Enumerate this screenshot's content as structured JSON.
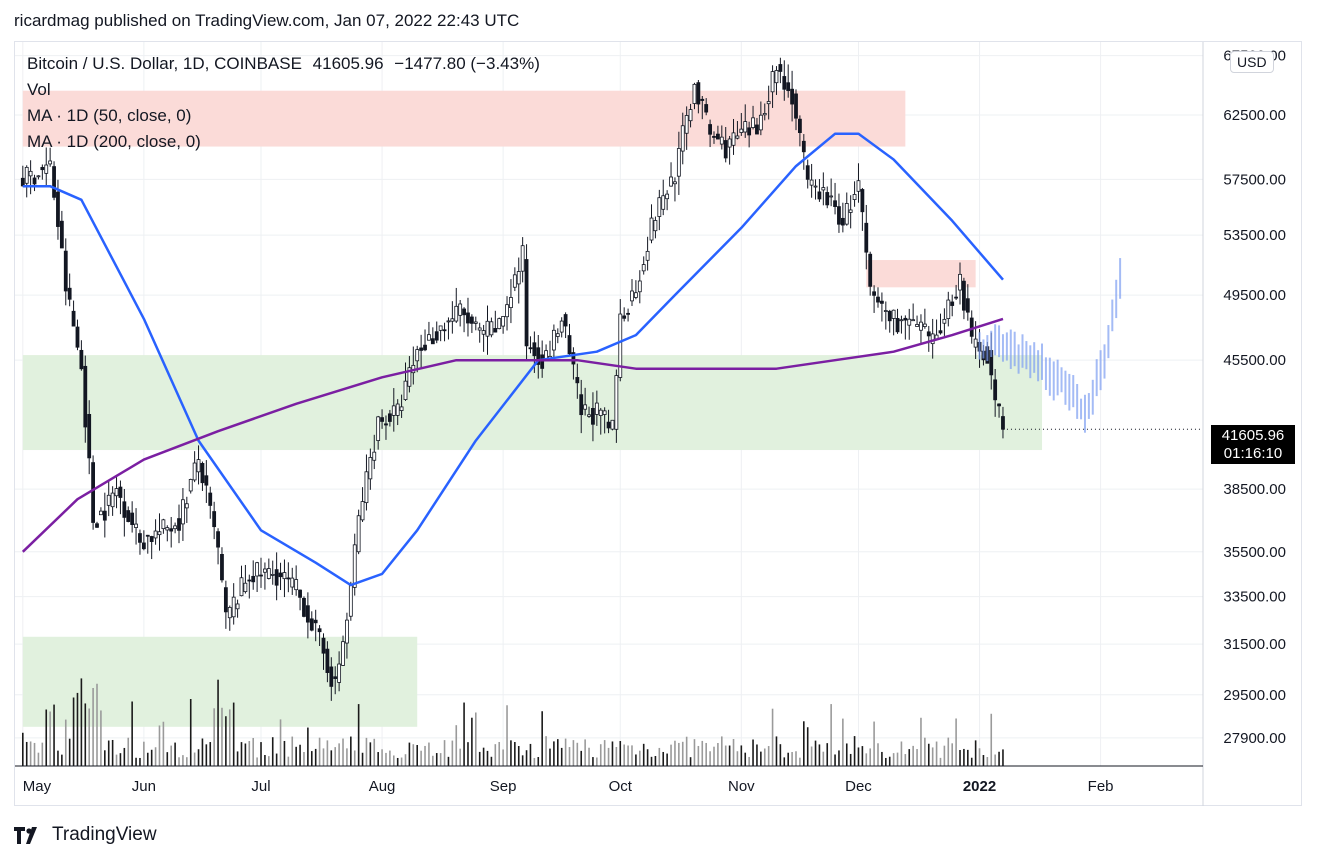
{
  "header": {
    "published": "ricardmag published on TradingView.com, Jan 07, 2022 22:43 UTC"
  },
  "legend": {
    "symbol": "Bitcoin / U.S. Dollar, 1D, COINBASE",
    "last": "41605.96",
    "change": "−1477.80 (−3.43%)",
    "vol": "Vol",
    "ma50": "MA · 1D (50, close, 0)",
    "ma200": "MA · 1D (200, close, 0)"
  },
  "currency_badge": "USD",
  "price_badge": {
    "price": "41605.96",
    "countdown": "01:16:10"
  },
  "footer": {
    "brand": "TradingView",
    "logo_icon": "tradingview-logo-icon"
  },
  "colors": {
    "ma50": "#2962ff",
    "ma200": "#7b1fa2",
    "resistance_zone": "#fbd9d6",
    "support_zone": "#dff0dc",
    "projection": "#7e9ff2"
  },
  "chart_data": {
    "type": "candlestick",
    "title": "Bitcoin / U.S. Dollar, 1D, COINBASE",
    "y_ticks": [
      67500,
      62500,
      57500,
      53500,
      49500,
      45500,
      38500,
      35500,
      33500,
      31500,
      29500,
      27900
    ],
    "y_tick_labels": [
      "67500.00",
      "62500.00",
      "57500.00",
      "53500.00",
      "49500.00",
      "45500.00",
      "38500.00",
      "35500.00",
      "33500.00",
      "31500.00",
      "29500.00",
      "27900.00"
    ],
    "ylim": [
      26900,
      68700
    ],
    "scale": "log",
    "x_labels": [
      {
        "label": "May",
        "date": "2021-05-01"
      },
      {
        "label": "Jun",
        "date": "2021-06-01"
      },
      {
        "label": "Jul",
        "date": "2021-07-01"
      },
      {
        "label": "Aug",
        "date": "2021-08-01"
      },
      {
        "label": "Sep",
        "date": "2021-09-01"
      },
      {
        "label": "Oct",
        "date": "2021-10-01"
      },
      {
        "label": "Nov",
        "date": "2021-11-01"
      },
      {
        "label": "Dec",
        "date": "2021-12-01"
      },
      {
        "label": "2022",
        "date": "2022-01-01",
        "bold": true
      },
      {
        "label": "Feb",
        "date": "2022-02-01"
      }
    ],
    "price_path": [
      [
        "2021-05-01",
        57500
      ],
      [
        "2021-05-08",
        58500
      ],
      [
        "2021-05-12",
        50000
      ],
      [
        "2021-05-16",
        45000
      ],
      [
        "2021-05-19",
        37000
      ],
      [
        "2021-05-22",
        37500
      ],
      [
        "2021-05-25",
        38500
      ],
      [
        "2021-05-31",
        36000
      ],
      [
        "2021-06-06",
        36500
      ],
      [
        "2021-06-10",
        37000
      ],
      [
        "2021-06-15",
        40000
      ],
      [
        "2021-06-20",
        35500
      ],
      [
        "2021-06-22",
        32500
      ],
      [
        "2021-06-28",
        34500
      ],
      [
        "2021-07-05",
        34500
      ],
      [
        "2021-07-10",
        33800
      ],
      [
        "2021-07-15",
        32000
      ],
      [
        "2021-07-20",
        29800
      ],
      [
        "2021-07-23",
        32500
      ],
      [
        "2021-07-26",
        37000
      ],
      [
        "2021-07-31",
        42000
      ],
      [
        "2021-08-05",
        42500
      ],
      [
        "2021-08-10",
        46000
      ],
      [
        "2021-08-14",
        47000
      ],
      [
        "2021-08-21",
        48500
      ],
      [
        "2021-08-26",
        47000
      ],
      [
        "2021-08-31",
        47500
      ],
      [
        "2021-09-06",
        52000
      ],
      [
        "2021-09-07",
        46500
      ],
      [
        "2021-09-12",
        45500
      ],
      [
        "2021-09-16",
        48000
      ],
      [
        "2021-09-21",
        42500
      ],
      [
        "2021-09-25",
        42500
      ],
      [
        "2021-09-29",
        41500
      ],
      [
        "2021-10-01",
        48000
      ],
      [
        "2021-10-05",
        50000
      ],
      [
        "2021-10-10",
        55000
      ],
      [
        "2021-10-15",
        58000
      ],
      [
        "2021-10-20",
        65000
      ],
      [
        "2021-10-24",
        61000
      ],
      [
        "2021-10-28",
        60000
      ],
      [
        "2021-11-01",
        61000
      ],
      [
        "2021-11-05",
        61500
      ],
      [
        "2021-11-10",
        66500
      ],
      [
        "2021-11-14",
        64000
      ],
      [
        "2021-11-18",
        57000
      ],
      [
        "2021-11-22",
        56500
      ],
      [
        "2021-11-27",
        54500
      ],
      [
        "2021-12-01",
        57000
      ],
      [
        "2021-12-04",
        49500
      ],
      [
        "2021-12-10",
        48000
      ],
      [
        "2021-12-16",
        47500
      ],
      [
        "2021-12-20",
        46500
      ],
      [
        "2021-12-27",
        50500
      ],
      [
        "2021-12-30",
        46500
      ],
      [
        "2022-01-03",
        46000
      ],
      [
        "2022-01-05",
        43000
      ],
      [
        "2022-01-07",
        41605.96
      ]
    ],
    "ma50": [
      [
        "2021-05-01",
        57000
      ],
      [
        "2021-05-08",
        57000
      ],
      [
        "2021-05-16",
        56000
      ],
      [
        "2021-06-01",
        48000
      ],
      [
        "2021-06-15",
        41000
      ],
      [
        "2021-07-01",
        36500
      ],
      [
        "2021-07-15",
        35000
      ],
      [
        "2021-07-24",
        34000
      ],
      [
        "2021-08-01",
        34500
      ],
      [
        "2021-08-10",
        36500
      ],
      [
        "2021-08-25",
        41000
      ],
      [
        "2021-09-10",
        45500
      ],
      [
        "2021-09-25",
        46000
      ],
      [
        "2021-10-05",
        47000
      ],
      [
        "2021-10-15",
        49500
      ],
      [
        "2021-11-01",
        54000
      ],
      [
        "2021-11-15",
        58500
      ],
      [
        "2021-11-25",
        61000
      ],
      [
        "2021-12-01",
        61000
      ],
      [
        "2021-12-10",
        59000
      ],
      [
        "2021-12-25",
        54500
      ],
      [
        "2022-01-07",
        50500
      ]
    ],
    "ma200": [
      [
        "2021-05-01",
        35500
      ],
      [
        "2021-05-15",
        38000
      ],
      [
        "2021-06-01",
        40000
      ],
      [
        "2021-06-20",
        41500
      ],
      [
        "2021-07-10",
        43000
      ],
      [
        "2021-08-01",
        44500
      ],
      [
        "2021-08-20",
        45500
      ],
      [
        "2021-09-20",
        45500
      ],
      [
        "2021-10-05",
        45000
      ],
      [
        "2021-10-25",
        45000
      ],
      [
        "2021-11-10",
        45000
      ],
      [
        "2021-11-25",
        45500
      ],
      [
        "2021-12-10",
        46000
      ],
      [
        "2021-12-25",
        47000
      ],
      [
        "2022-01-07",
        48000
      ]
    ],
    "projection": [
      [
        "2022-01-01",
        46000
      ],
      [
        "2022-01-05",
        46500
      ],
      [
        "2022-01-10",
        46000
      ],
      [
        "2022-01-15",
        45700
      ],
      [
        "2022-01-20",
        44500
      ],
      [
        "2022-01-25",
        43500
      ],
      [
        "2022-01-28",
        42500
      ],
      [
        "2022-02-02",
        45500
      ],
      [
        "2022-02-06",
        50500
      ]
    ],
    "zones": [
      {
        "kind": "resistance",
        "from": "2021-05-01",
        "to": "2021-12-13",
        "low": 60000,
        "high": 64500
      },
      {
        "kind": "resistance",
        "from": "2021-12-03",
        "to": "2021-12-31",
        "low": 50000,
        "high": 51800
      },
      {
        "kind": "support",
        "from": "2021-05-01",
        "to": "2022-01-17",
        "low": 40500,
        "high": 45800
      },
      {
        "kind": "support",
        "from": "2021-05-01",
        "to": "2021-08-10",
        "low": 28300,
        "high": 31800
      }
    ]
  }
}
